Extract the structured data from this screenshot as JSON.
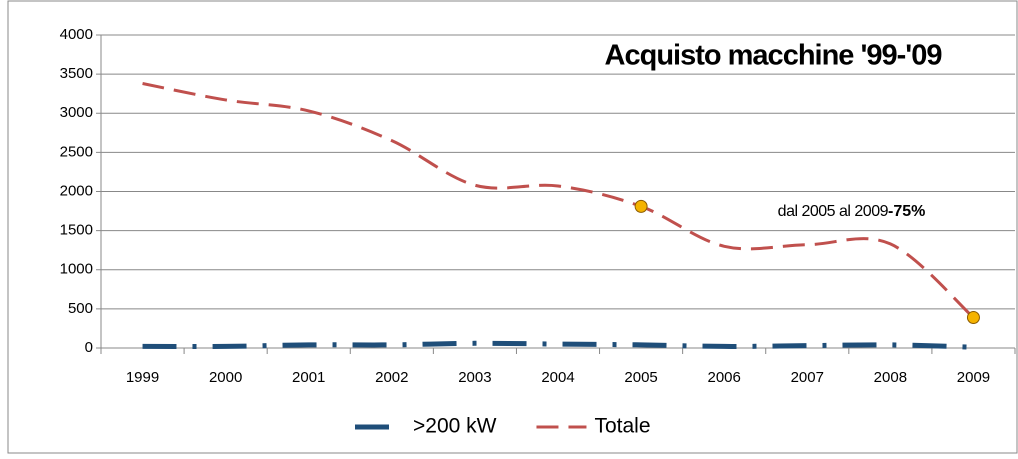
{
  "chart_data": {
    "type": "line",
    "title": "Acquisto macchine '99-'09",
    "categories": [
      "1999",
      "2000",
      "2001",
      "2002",
      "2003",
      "2004",
      "2005",
      "2006",
      "2007",
      "2008",
      "2009"
    ],
    "series": [
      {
        "name": ">200 kW",
        "color": "#1f4e79",
        "dash": "34,16,4,16",
        "width": 5,
        "values": [
          20,
          20,
          40,
          40,
          60,
          50,
          40,
          20,
          30,
          40,
          10
        ]
      },
      {
        "name": "Totale",
        "color": "#c0504d",
        "dash": "22,10",
        "width": 3,
        "values": [
          3380,
          3170,
          3030,
          2650,
          2080,
          2070,
          1810,
          1300,
          1320,
          1330,
          390
        ]
      }
    ],
    "markers": {
      "series": "Totale",
      "categories": [
        "2005",
        "2009"
      ],
      "color": "#f5b300"
    },
    "annotation": {
      "text": "dal 2005 al 2009 ",
      "highlight": "-75%",
      "highlight_color": "#ff0000"
    },
    "ylim": [
      0,
      4000
    ],
    "yticks": [
      0,
      500,
      1000,
      1500,
      2000,
      2500,
      3000,
      3500,
      4000
    ],
    "grid": true,
    "legend": "bottom"
  }
}
